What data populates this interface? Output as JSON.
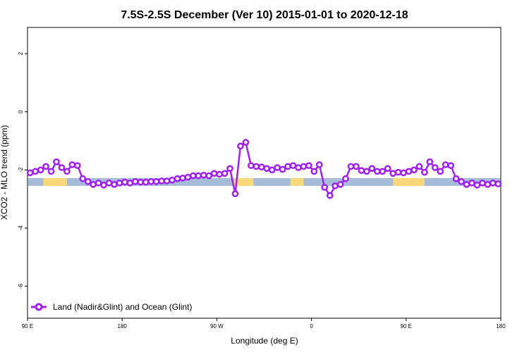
{
  "chart_data": {
    "type": "line",
    "title": "7.5S-2.5S December (Ver 10)   2015-01-01 to 2020-12-18",
    "xlabel": "Longitude (deg E)",
    "ylabel": "XCO2 - MLO trend (ppm)",
    "xlim": [
      90,
      450
    ],
    "ylim": [
      -7.1,
      2.9
    ],
    "x_ticks": [
      {
        "value": 90,
        "label": "90 E"
      },
      {
        "value": 162,
        "label": "180"
      },
      {
        "value": 234,
        "label": "90 W"
      },
      {
        "value": 306,
        "label": "0"
      },
      {
        "value": 378,
        "label": "90 E"
      },
      {
        "value": 450,
        "label": "180"
      }
    ],
    "y_ticks": [
      {
        "value": 2,
        "label": "2"
      },
      {
        "value": 0,
        "label": "0"
      },
      {
        "value": -2,
        "label": "-2"
      },
      {
        "value": -4,
        "label": "-4"
      },
      {
        "value": -6,
        "label": "-6"
      }
    ],
    "grid": false,
    "legend_position": "bottom-left",
    "series": [
      {
        "name": "Land (Nadir&Glint) and Ocean (Glint)",
        "color": "#a020f0",
        "x": [
          92,
          96,
          100,
          104,
          108,
          112,
          116,
          120,
          124,
          128,
          132,
          136,
          140,
          144,
          148,
          152,
          156,
          160,
          164,
          168,
          172,
          176,
          180,
          184,
          188,
          192,
          196,
          200,
          204,
          208,
          212,
          216,
          220,
          224,
          228,
          232,
          236,
          240,
          244,
          248,
          252,
          256,
          260,
          264,
          268,
          272,
          276,
          280,
          284,
          288,
          292,
          296,
          300,
          304,
          308,
          312,
          316,
          320,
          324,
          328,
          332,
          336,
          340,
          344,
          348,
          352,
          356,
          360,
          364,
          368,
          372,
          376,
          380,
          384,
          388,
          392,
          396,
          400,
          404,
          408,
          412,
          416,
          420,
          424,
          428,
          432,
          436,
          440,
          444,
          448
        ],
        "y": [
          -2.1,
          -2.05,
          -2.0,
          -1.88,
          -2.05,
          -1.72,
          -1.92,
          -2.05,
          -1.82,
          -1.85,
          -2.3,
          -2.4,
          -2.5,
          -2.45,
          -2.52,
          -2.45,
          -2.5,
          -2.45,
          -2.42,
          -2.45,
          -2.4,
          -2.42,
          -2.42,
          -2.4,
          -2.4,
          -2.38,
          -2.38,
          -2.35,
          -2.3,
          -2.28,
          -2.25,
          -2.2,
          -2.2,
          -2.18,
          -2.2,
          -2.12,
          -2.15,
          -2.12,
          -1.95,
          -2.82,
          -1.18,
          -1.05,
          -1.85,
          -1.88,
          -1.9,
          -1.95,
          -2.0,
          -1.92,
          -1.98,
          -1.88,
          -1.85,
          -1.92,
          -1.88,
          -1.85,
          -2.05,
          -1.82,
          -2.6,
          -2.88,
          -2.55,
          -2.5,
          -2.3,
          -1.88,
          -1.88,
          -2.02,
          -2.05,
          -1.95,
          -2.05,
          -2.05,
          -1.95,
          -2.12,
          -2.08,
          -2.1,
          -2.05,
          -2.0,
          -1.88,
          -2.08,
          -1.72,
          -1.92,
          -2.05,
          -1.82,
          -1.85,
          -2.3,
          -2.4,
          -2.5,
          -2.45,
          -2.52,
          -2.45,
          -2.5,
          -2.45,
          -2.48
        ]
      }
    ],
    "surface_band": {
      "y_top": -2.28,
      "y_bottom": -2.55,
      "ocean_color": "#a7bcd8",
      "land_color": "#f7d87a",
      "land_ranges": [
        [
          102,
          120
        ],
        [
          247,
          262
        ],
        [
          290,
          300
        ],
        [
          368,
          392
        ]
      ]
    }
  }
}
